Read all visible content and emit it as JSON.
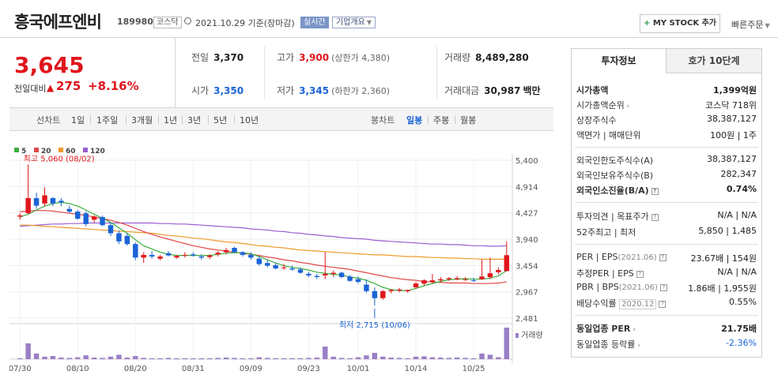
{
  "header": {
    "stock_name": "흥국에프엔비",
    "stock_code": "189980",
    "market": "코스닥",
    "date_text": "2021.10.29 기준(장마감)",
    "realtime_label": "실시간",
    "overview_label": "기업개요",
    "mystock_label": "MY STOCK 추가",
    "quick_order_label": "빠른주문"
  },
  "price": {
    "current": "3,645",
    "change_label": "전일대비",
    "change": "275",
    "change_pct": "+8.16%"
  },
  "stats": {
    "prev_close": {
      "label": "전일",
      "value": "3,370"
    },
    "high": {
      "label": "고가",
      "value": "3,900",
      "sub": "(상한가 4,380)"
    },
    "volume": {
      "label": "거래량",
      "value": "8,489,280"
    },
    "open": {
      "label": "시가",
      "value": "3,350"
    },
    "low": {
      "label": "저가",
      "value": "3,345",
      "sub": "(하한가 2,360)"
    },
    "amount": {
      "label": "거래대금",
      "value": "30,987",
      "unit": "백만"
    }
  },
  "toolbar": {
    "line_chart": "선차트",
    "periods": [
      "1일",
      "1주일",
      "3개월",
      "1년",
      "3년",
      "5년",
      "10년"
    ],
    "candle_chart": "봉차트",
    "candles": [
      "일봉",
      "주봉",
      "월봉"
    ]
  },
  "panel": {
    "tab_invest": "투자정보",
    "tab_quote": "호가 10단계",
    "rows": [
      {
        "label": "시가총액",
        "value": "1,399억원"
      },
      {
        "label": "시가총액순위",
        "value": "코스닥 718위"
      },
      {
        "label": "상장주식수",
        "value": "38,387,127"
      },
      {
        "label": "액면가 | 매매단위",
        "value": "100원 | 1주"
      },
      {
        "label": "외국인한도주식수(A)",
        "value": "38,387,127"
      },
      {
        "label": "외국인보유주식수(B)",
        "value": "282,347"
      },
      {
        "label": "외국인소진율(B/A)",
        "value": "0.74%"
      },
      {
        "label": "투자의견 | 목표주가",
        "value": "N/A | N/A"
      },
      {
        "label": "52주최고 | 최저",
        "value": "5,850 | 1,485"
      },
      {
        "label": "PER | EPS",
        "note": "(2021.06)",
        "value": "23.67배 | 154원"
      },
      {
        "label": "추정PER | EPS",
        "value": "N/A | N/A"
      },
      {
        "label": "PBR | BPS",
        "note": "(2021.06)",
        "value": "1.86배 | 1,955원"
      },
      {
        "label": "배당수익률",
        "note": "2020.12",
        "value": "0.55%"
      },
      {
        "label": "동일업종 PER",
        "value": "21.75배"
      },
      {
        "label": "동일업종 등락률",
        "value": "-2.36%"
      }
    ]
  },
  "chart_data": {
    "type": "candlestick",
    "legend": [
      {
        "name": "5",
        "color": "#3cad3c"
      },
      {
        "name": "20",
        "color": "#e04848"
      },
      {
        "name": "60",
        "color": "#f09a2a"
      },
      {
        "name": "120",
        "color": "#9a5fd0"
      }
    ],
    "volume_label": "거래량",
    "y_ticks": [
      "5,400",
      "4,914",
      "4,427",
      "3,940",
      "3,454",
      "2,967",
      "2,481"
    ],
    "ylim": [
      2481,
      5400
    ],
    "x_labels": [
      "07/30",
      "08/10",
      "08/20",
      "08/31",
      "09/09",
      "09/23",
      "10/01",
      "10/14",
      "10/25"
    ],
    "x_label_index": [
      0,
      7,
      14,
      21,
      28,
      35,
      41,
      48,
      55
    ],
    "high_annotation": "최고 5,060 (08/02)",
    "high_index": 1,
    "high_value": 5060,
    "low_annotation": "최저 2,715 (10/06)",
    "low_index": 43,
    "low_value": 2715,
    "candles": [
      [
        4360,
        4420,
        4300,
        4380
      ],
      [
        4420,
        5060,
        4400,
        4700
      ],
      [
        4700,
        4800,
        4500,
        4560
      ],
      [
        4600,
        4900,
        4550,
        4750
      ],
      [
        4700,
        4720,
        4550,
        4600
      ],
      [
        4650,
        4700,
        4550,
        4620
      ],
      [
        4500,
        4560,
        4420,
        4450
      ],
      [
        4450,
        4480,
        4300,
        4320
      ],
      [
        4420,
        4460,
        4180,
        4220
      ],
      [
        4300,
        4380,
        4250,
        4360
      ],
      [
        4350,
        4380,
        4180,
        4200
      ],
      [
        4200,
        4250,
        4000,
        4050
      ],
      [
        4050,
        4100,
        3850,
        3900
      ],
      [
        4000,
        4050,
        3820,
        3850
      ],
      [
        3850,
        3880,
        3550,
        3600
      ],
      [
        3600,
        3700,
        3500,
        3650
      ],
      [
        3650,
        3720,
        3580,
        3620
      ],
      [
        3580,
        3650,
        3550,
        3620
      ],
      [
        3680,
        3720,
        3620,
        3640
      ],
      [
        3600,
        3650,
        3580,
        3630
      ],
      [
        3640,
        3700,
        3600,
        3650
      ],
      [
        3660,
        3700,
        3620,
        3640
      ],
      [
        3620,
        3660,
        3560,
        3600
      ],
      [
        3610,
        3660,
        3570,
        3640
      ],
      [
        3660,
        3720,
        3620,
        3690
      ],
      [
        3700,
        3780,
        3660,
        3740
      ],
      [
        3780,
        3800,
        3680,
        3700
      ],
      [
        3700,
        3720,
        3620,
        3650
      ],
      [
        3650,
        3700,
        3560,
        3600
      ],
      [
        3580,
        3620,
        3450,
        3480
      ],
      [
        3500,
        3560,
        3420,
        3450
      ],
      [
        3460,
        3500,
        3380,
        3400
      ],
      [
        3410,
        3480,
        3370,
        3420
      ],
      [
        3400,
        3450,
        3360,
        3380
      ],
      [
        3380,
        3420,
        3300,
        3320
      ],
      [
        3300,
        3340,
        3240,
        3270
      ],
      [
        3260,
        3300,
        3200,
        3240
      ],
      [
        3270,
        3700,
        3200,
        3300
      ],
      [
        3300,
        3360,
        3240,
        3320
      ],
      [
        3320,
        3340,
        3220,
        3240
      ],
      [
        3250,
        3280,
        3150,
        3170
      ],
      [
        3200,
        3250,
        3120,
        3150
      ],
      [
        3100,
        3200,
        2950,
        2980
      ],
      [
        2980,
        3050,
        2715,
        2850
      ],
      [
        2850,
        3000,
        2820,
        2980
      ],
      [
        2980,
        3020,
        2940,
        3000
      ],
      [
        2990,
        3040,
        2960,
        3010
      ],
      [
        2980,
        3010,
        2950,
        3000
      ],
      [
        3050,
        3150,
        3020,
        3120
      ],
      [
        3120,
        3200,
        3080,
        3180
      ],
      [
        3150,
        3300,
        3120,
        3180
      ],
      [
        3180,
        3240,
        3140,
        3200
      ],
      [
        3200,
        3240,
        3170,
        3220
      ],
      [
        3200,
        3260,
        3180,
        3220
      ],
      [
        3200,
        3240,
        3170,
        3200
      ],
      [
        3180,
        3230,
        3150,
        3170
      ],
      [
        3200,
        3560,
        3190,
        3250
      ],
      [
        3240,
        3600,
        3200,
        3310
      ],
      [
        3330,
        3420,
        3290,
        3370
      ],
      [
        3350,
        3900,
        3345,
        3645
      ]
    ],
    "ma5": [
      4350,
      4400,
      4480,
      4550,
      4600,
      4620,
      4600,
      4550,
      4480,
      4400,
      4330,
      4250,
      4150,
      4050,
      3930,
      3820,
      3760,
      3700,
      3660,
      3640,
      3640,
      3640,
      3640,
      3640,
      3660,
      3680,
      3690,
      3690,
      3670,
      3620,
      3560,
      3500,
      3450,
      3420,
      3400,
      3370,
      3330,
      3310,
      3290,
      3280,
      3240,
      3220,
      3180,
      3120,
      3050,
      3010,
      2990,
      2990,
      3030,
      3080,
      3120,
      3160,
      3190,
      3200,
      3210,
      3200,
      3200,
      3220,
      3260,
      3360
    ],
    "ma20": [
      4450,
      4460,
      4470,
      4470,
      4460,
      4440,
      4420,
      4400,
      4380,
      4350,
      4320,
      4290,
      4250,
      4200,
      4140,
      4080,
      4030,
      3980,
      3940,
      3900,
      3860,
      3820,
      3790,
      3760,
      3740,
      3720,
      3700,
      3680,
      3660,
      3640,
      3610,
      3590,
      3560,
      3540,
      3510,
      3490,
      3460,
      3440,
      3420,
      3400,
      3380,
      3350,
      3320,
      3290,
      3260,
      3230,
      3210,
      3190,
      3180,
      3160,
      3150,
      3140,
      3130,
      3130,
      3130,
      3120,
      3120,
      3120,
      3130,
      3150
    ],
    "ma60": [
      4200,
      4200,
      4190,
      4180,
      4170,
      4160,
      4150,
      4140,
      4130,
      4120,
      4110,
      4100,
      4090,
      4080,
      4070,
      4060,
      4050,
      4030,
      4010,
      4000,
      3980,
      3960,
      3950,
      3930,
      3910,
      3890,
      3880,
      3860,
      3840,
      3820,
      3810,
      3790,
      3780,
      3760,
      3740,
      3730,
      3720,
      3710,
      3700,
      3690,
      3680,
      3670,
      3660,
      3650,
      3650,
      3640,
      3630,
      3620,
      3620,
      3610,
      3600,
      3600,
      3590,
      3590,
      3580,
      3580,
      3570,
      3570,
      3570,
      3570
    ],
    "ma120": [
      4180,
      4190,
      4200,
      4210,
      4220,
      4220,
      4230,
      4230,
      4240,
      4240,
      4240,
      4240,
      4240,
      4240,
      4240,
      4240,
      4240,
      4230,
      4230,
      4220,
      4220,
      4210,
      4200,
      4190,
      4180,
      4170,
      4160,
      4150,
      4130,
      4120,
      4110,
      4090,
      4080,
      4060,
      4050,
      4030,
      4020,
      4000,
      3990,
      3970,
      3960,
      3950,
      3940,
      3920,
      3910,
      3900,
      3890,
      3880,
      3870,
      3860,
      3850,
      3850,
      3840,
      3840,
      3830,
      3820,
      3820,
      3810,
      3810,
      3820
    ],
    "volumes": [
      3,
      50,
      18,
      8,
      10,
      5,
      4,
      6,
      12,
      5,
      4,
      8,
      14,
      5,
      10,
      4,
      3,
      3,
      4,
      3,
      3,
      3,
      3,
      3,
      4,
      5,
      4,
      3,
      3,
      6,
      4,
      3,
      3,
      3,
      3,
      4,
      5,
      40,
      8,
      4,
      3,
      6,
      12,
      20,
      8,
      5,
      4,
      3,
      8,
      9,
      6,
      5,
      4,
      5,
      4,
      3,
      18,
      14,
      6,
      100
    ]
  }
}
